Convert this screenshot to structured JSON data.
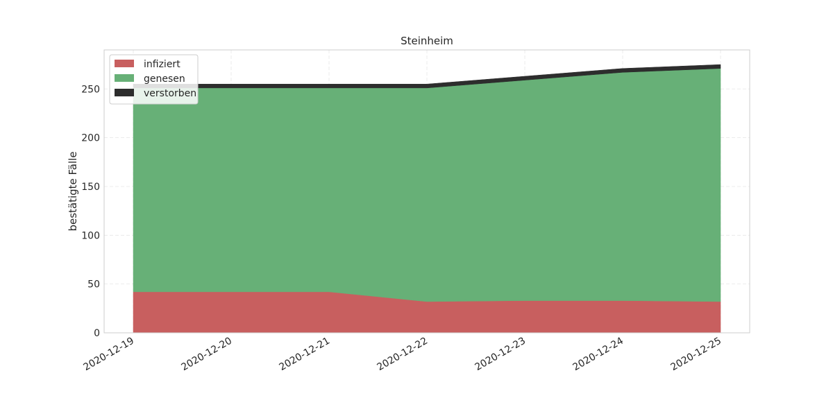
{
  "chart_data": {
    "type": "area",
    "title": "Steinheim",
    "xlabel": "",
    "ylabel": "bestätigte Fälle",
    "x": [
      "2020-12-19",
      "2020-12-20",
      "2020-12-21",
      "2020-12-22",
      "2020-12-23",
      "2020-12-24",
      "2020-12-25"
    ],
    "series": [
      {
        "name": "infiziert",
        "color": "#c85f5f",
        "values": [
          42,
          42,
          42,
          32,
          33,
          33,
          32
        ]
      },
      {
        "name": "genesen",
        "color": "#67b077",
        "values": [
          209,
          209,
          209,
          219,
          226,
          234,
          239
        ]
      },
      {
        "name": "verstorben",
        "color": "#2d2d2d",
        "values": [
          4,
          4,
          4,
          4,
          4,
          4,
          4
        ]
      }
    ],
    "stacked": true,
    "ylim": [
      0,
      290
    ],
    "yticks": [
      0,
      50,
      100,
      150,
      200,
      250
    ],
    "grid": true,
    "legend_position": "top-left"
  }
}
